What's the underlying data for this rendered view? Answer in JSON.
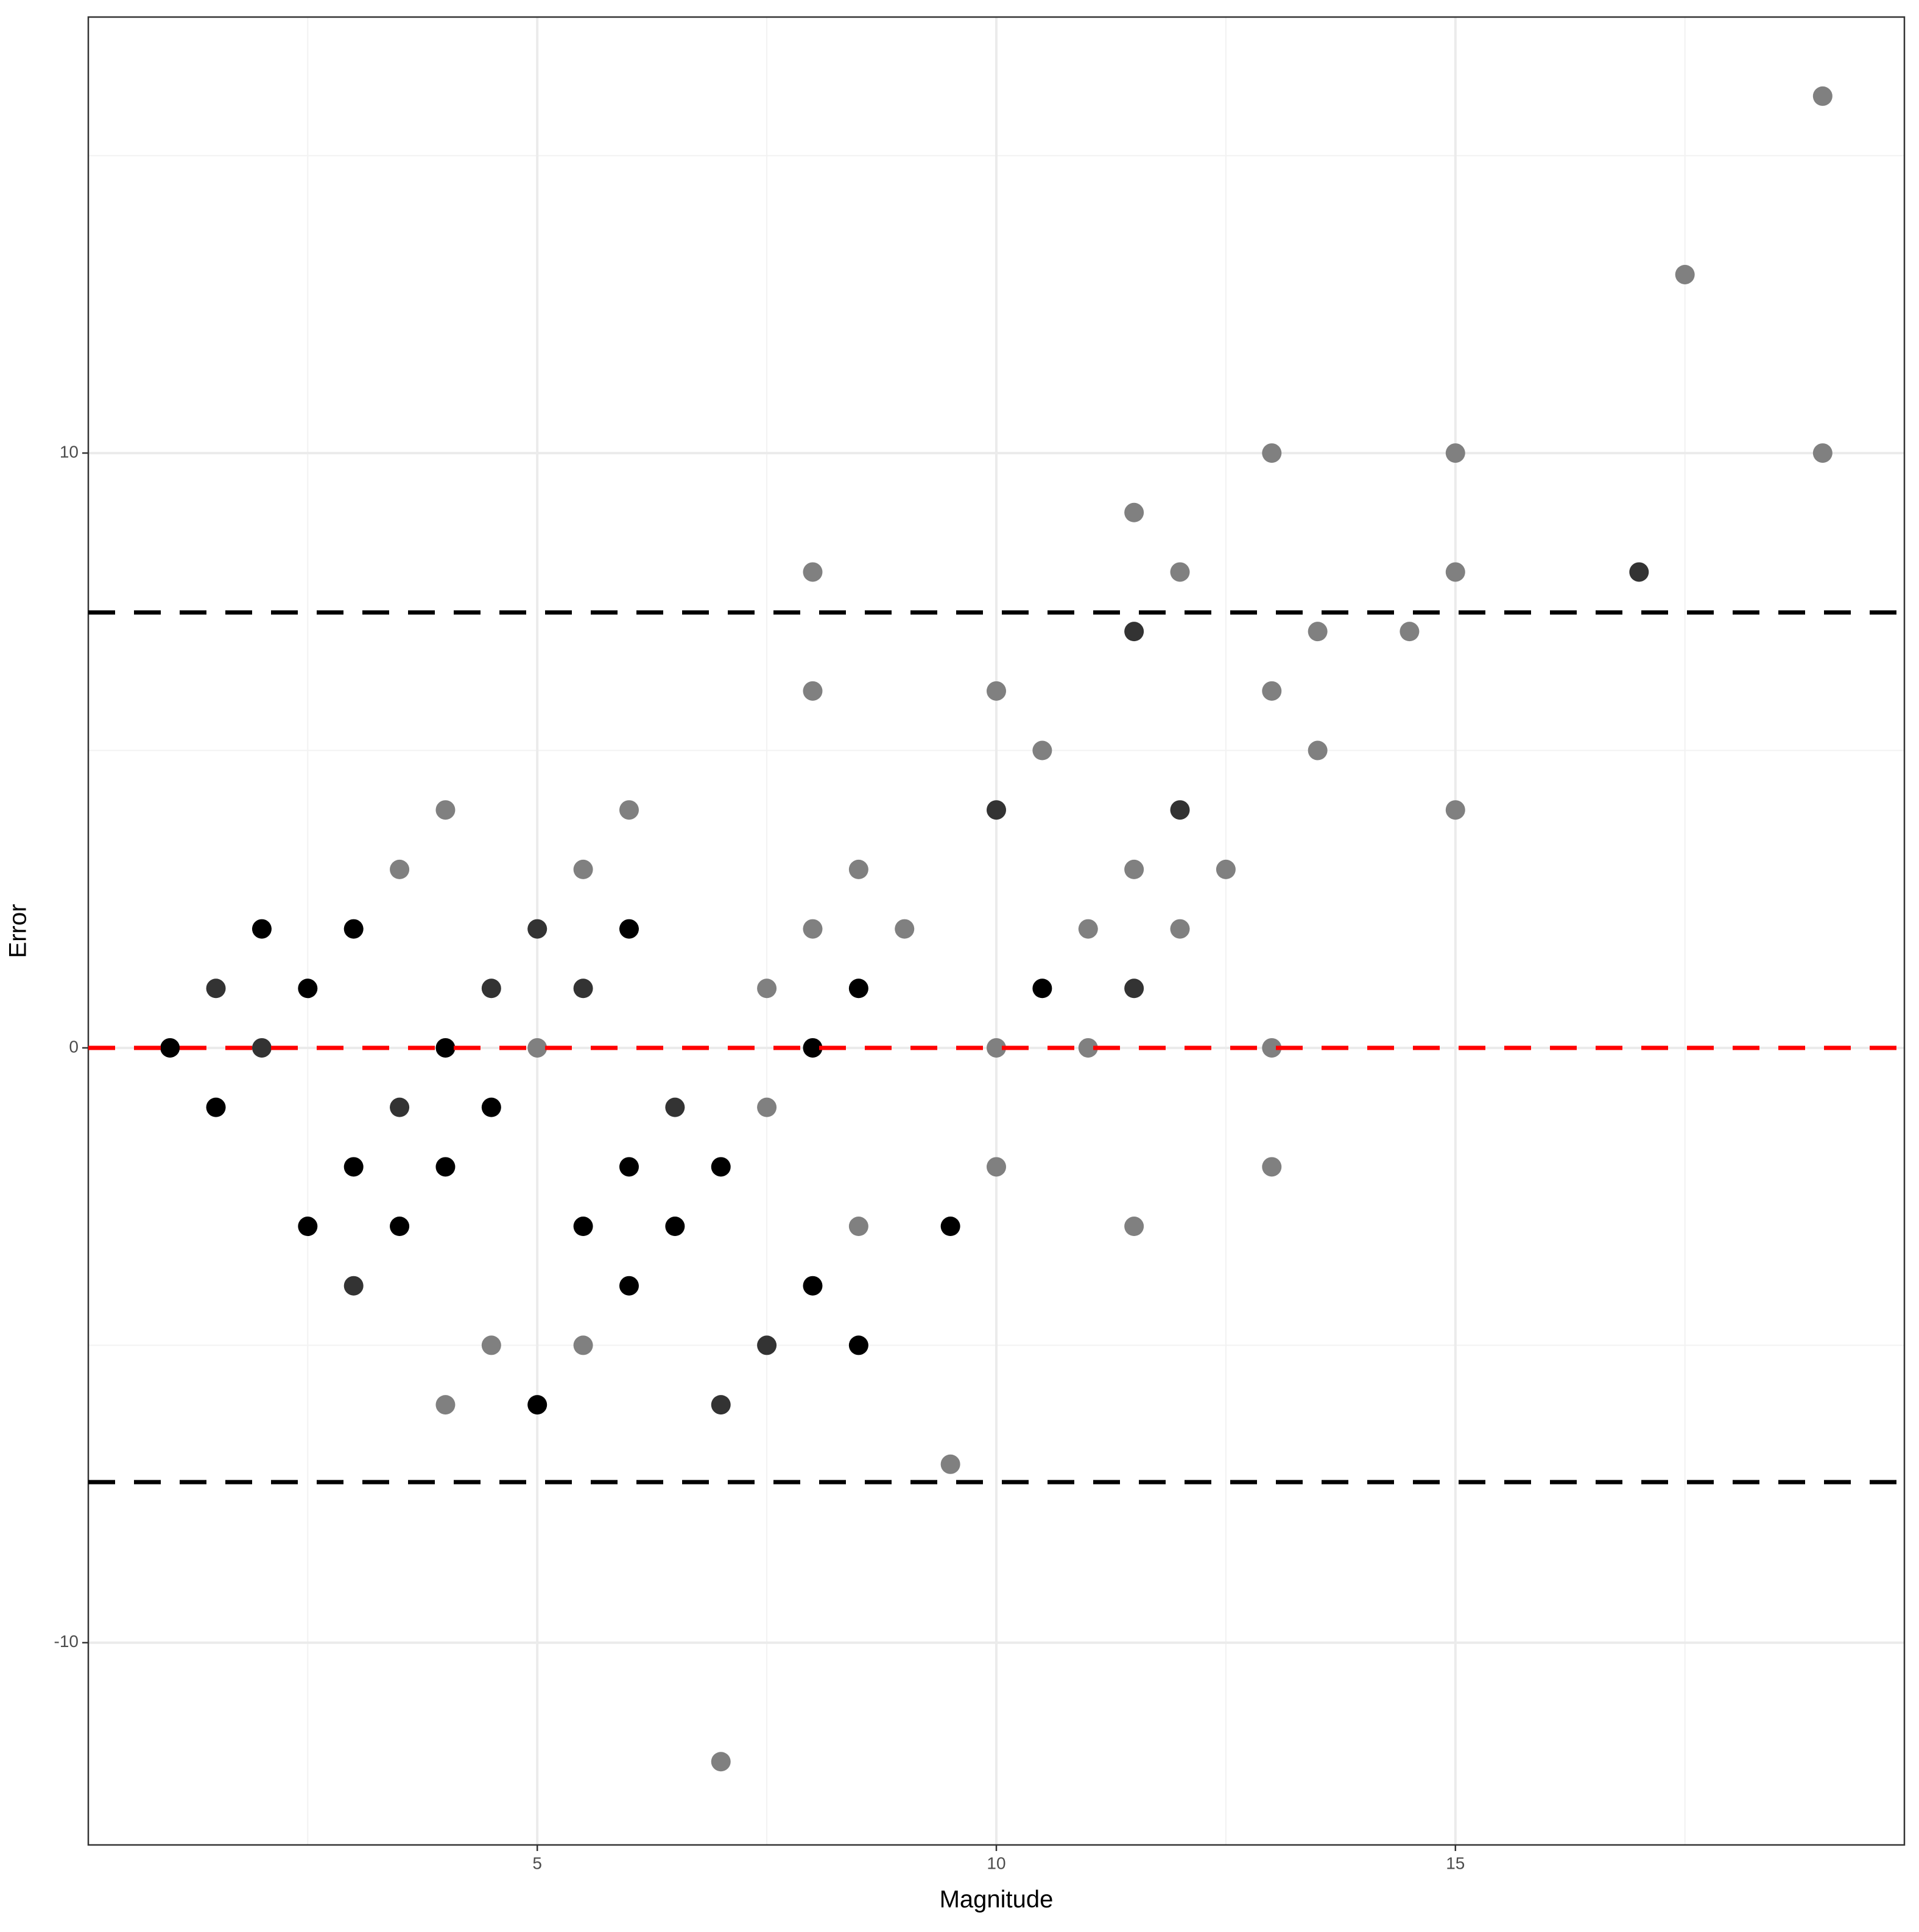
{
  "chart_data": {
    "type": "scatter",
    "x_label": "Magnitude",
    "y_label": "Error",
    "xlim": [
      0.11,
      19.89
    ],
    "ylim": [
      -13.4,
      17.33
    ],
    "xticks": [
      5,
      10,
      15
    ],
    "yticks": [
      -10,
      0,
      10
    ],
    "x_minor_grid": [
      2.5,
      7.5,
      12.5,
      17.5
    ],
    "y_minor_grid": [
      -5,
      5,
      15
    ],
    "grid": true,
    "hlines": [
      {
        "value": 7.32,
        "color": "#000000"
      },
      {
        "value": 0,
        "color": "#ff0000"
      },
      {
        "value": -7.3,
        "color": "#000000"
      }
    ],
    "series": [
      {
        "x": [
          19,
          17.5,
          13,
          15,
          19,
          11.5,
          8,
          12,
          15,
          17,
          11.5,
          13.5,
          14.5,
          8,
          10,
          13,
          10.5,
          13.5,
          4,
          6,
          10,
          12,
          15,
          3.5,
          5.5,
          8.5,
          12.5,
          11.5,
          2,
          3,
          5,
          6,
          8,
          9,
          11,
          12,
          1.5,
          2.5,
          4.5,
          5.5,
          7.5,
          8.5,
          10.5,
          11.5,
          1,
          2,
          4,
          5,
          8,
          10,
          11,
          13,
          1.5,
          3.5,
          4.5,
          6.5,
          7.5,
          3,
          4,
          6,
          7,
          10,
          13,
          2.5,
          3.5,
          5.5,
          6.5,
          8.5,
          9.5,
          11.5,
          3,
          6,
          8,
          4.5,
          5.5,
          7.5,
          8.5,
          4,
          5,
          7,
          9.5,
          7
        ],
        "values": [
          16,
          13,
          10,
          10,
          10,
          9,
          8,
          8,
          8,
          8,
          7,
          7,
          7,
          6,
          6,
          6,
          5,
          5,
          4,
          4,
          4,
          4,
          4,
          3,
          3,
          3,
          3,
          3,
          2,
          2,
          2,
          2,
          2,
          2,
          2,
          2,
          1,
          1,
          1,
          1,
          1,
          1,
          1,
          1,
          0,
          0,
          0,
          0,
          0,
          0,
          0,
          0,
          -1,
          -1,
          -1,
          -1,
          -1,
          -2,
          -2,
          -2,
          -2,
          -2,
          -2,
          -3,
          -3,
          -3,
          -3,
          -3,
          -3,
          -3,
          -4,
          -4,
          -4,
          -5,
          -5,
          -5,
          -5,
          -6,
          -6,
          -6,
          -7,
          -12
        ],
        "point_colors": [
          "#808080",
          "#808080",
          "#808080",
          "#808080",
          "#808080",
          "#808080",
          "#808080",
          "#808080",
          "#808080",
          "#333333",
          "#333333",
          "#808080",
          "#808080",
          "#808080",
          "#808080",
          "#808080",
          "#808080",
          "#808080",
          "#808080",
          "#808080",
          "#333333",
          "#333333",
          "#808080",
          "#808080",
          "#808080",
          "#808080",
          "#808080",
          "#808080",
          "#000000",
          "#000000",
          "#333333",
          "#000000",
          "#808080",
          "#808080",
          "#808080",
          "#808080",
          "#333333",
          "#000000",
          "#333333",
          "#333333",
          "#808080",
          "#000000",
          "#000000",
          "#333333",
          "#000000",
          "#333333",
          "#000000",
          "#808080",
          "#000000",
          "#808080",
          "#808080",
          "#808080",
          "#000000",
          "#333333",
          "#000000",
          "#333333",
          "#808080",
          "#000000",
          "#000000",
          "#000000",
          "#000000",
          "#808080",
          "#808080",
          "#000000",
          "#000000",
          "#000000",
          "#000000",
          "#808080",
          "#000000",
          "#808080",
          "#333333",
          "#000000",
          "#000000",
          "#808080",
          "#808080",
          "#333333",
          "#000000",
          "#808080",
          "#000000",
          "#333333",
          "#808080",
          "#808080"
        ]
      }
    ]
  }
}
